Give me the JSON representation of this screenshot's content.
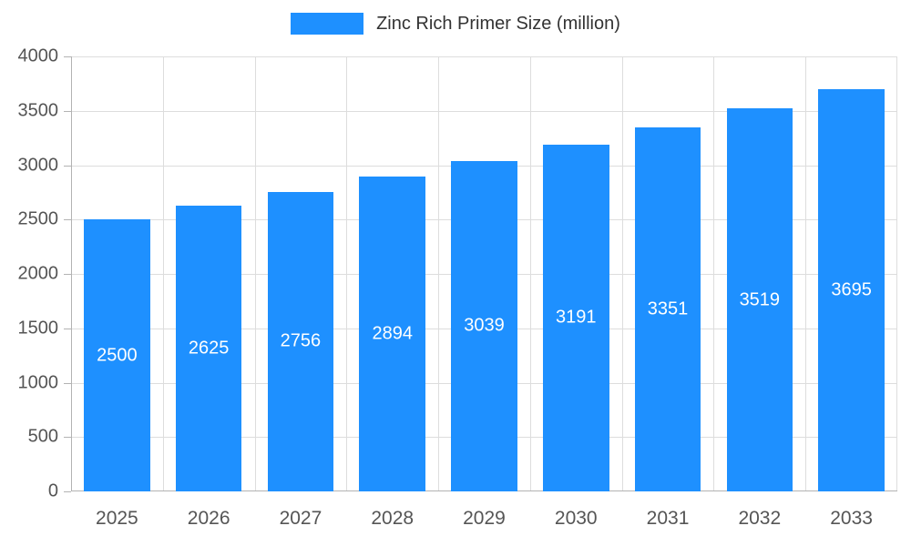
{
  "legend": {
    "label": "Zinc Rich Primer Size (million)"
  },
  "colors": {
    "bar": "#1e90ff",
    "legend_text": "#333333",
    "axis_text": "#555555",
    "grid": "#dddddd",
    "axis_line": "#b3b3b3",
    "value_label": "#ffffff"
  },
  "chart_data": {
    "type": "bar",
    "title": "Zinc Rich Primer Size (million)",
    "categories": [
      "2025",
      "2026",
      "2027",
      "2028",
      "2029",
      "2030",
      "2031",
      "2032",
      "2033"
    ],
    "values": [
      2500,
      2625,
      2756,
      2894,
      3039,
      3191,
      3351,
      3519,
      3695
    ],
    "xlabel": "",
    "ylabel": "",
    "ylim": [
      0,
      4000
    ],
    "ytick_step": 500,
    "grid": true,
    "legend_position": "top-center",
    "value_labels": "inside-center"
  }
}
